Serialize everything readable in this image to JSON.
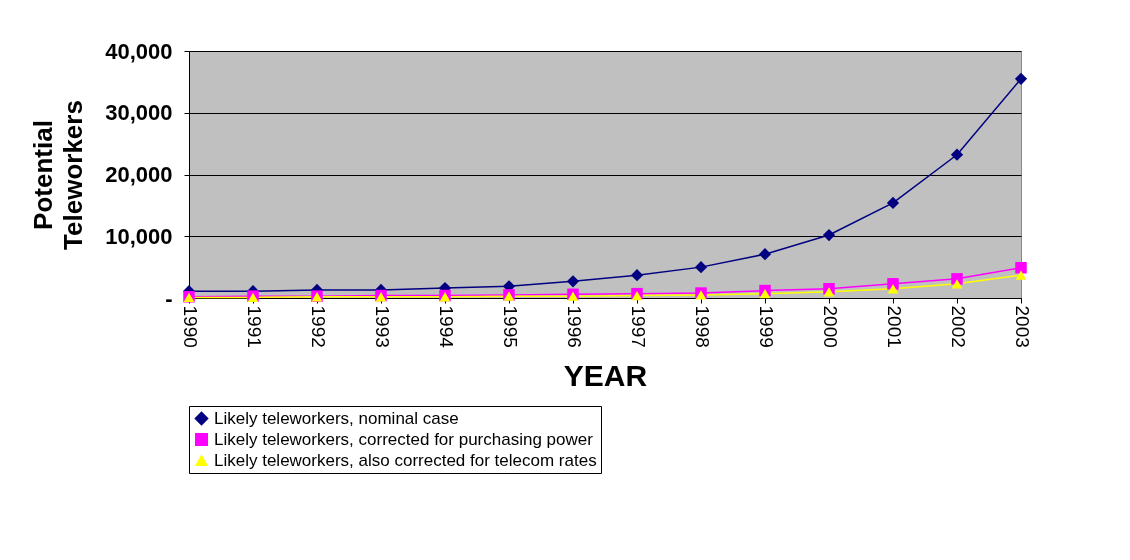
{
  "chart_data": {
    "type": "line",
    "xlabel": "YEAR",
    "ylabel": "Potential Teleworkers",
    "categories": [
      "1990",
      "1991",
      "1992",
      "1993",
      "1994",
      "1995",
      "1996",
      "1997",
      "1998",
      "1999",
      "2000",
      "2001",
      "2002",
      "2003"
    ],
    "series": [
      {
        "name": "Likely teleworkers, nominal case",
        "color": "#000080",
        "marker": "diamond",
        "values": [
          1100,
          1100,
          1300,
          1300,
          1600,
          1900,
          2700,
          3700,
          5000,
          7100,
          10200,
          15400,
          23200,
          35500
        ]
      },
      {
        "name": "Likely teleworkers, corrected for purchasing power",
        "color": "#ff00ff",
        "marker": "square",
        "values": [
          200,
          300,
          300,
          400,
          400,
          500,
          600,
          700,
          800,
          1200,
          1500,
          2300,
          3100,
          4900
        ]
      },
      {
        "name": "Likely teleworkers, also corrected for telecom rates",
        "color": "#ffff00",
        "marker": "triangle",
        "values": [
          100,
          100,
          200,
          200,
          200,
          300,
          300,
          400,
          500,
          700,
          1000,
          1500,
          2300,
          3700
        ]
      }
    ],
    "ylim": [
      0,
      40000
    ],
    "yticks": [
      {
        "value": 0,
        "label": "-"
      },
      {
        "value": 10000,
        "label": "10,000"
      },
      {
        "value": 20000,
        "label": "20,000"
      },
      {
        "value": 30000,
        "label": "30,000"
      },
      {
        "value": 40000,
        "label": "40,000"
      }
    ],
    "grid": "y",
    "legend": "bottom"
  }
}
